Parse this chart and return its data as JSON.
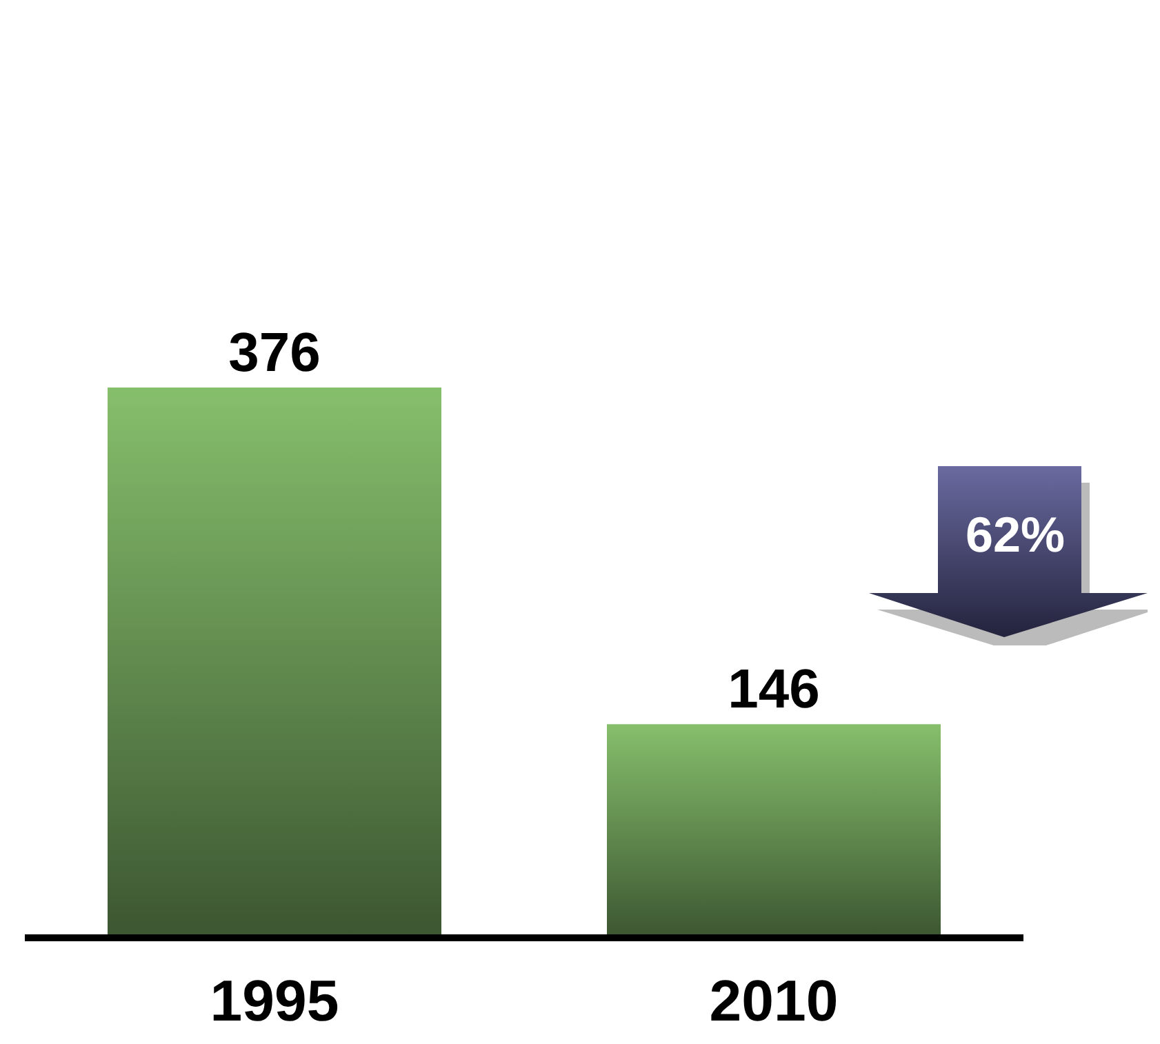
{
  "chart_data": {
    "type": "bar",
    "categories": [
      "1995",
      "2010"
    ],
    "values": [
      376,
      146
    ],
    "color": "#86bf6c",
    "data_labels": true,
    "grid": false,
    "legend": false,
    "annotations": [
      "62%"
    ]
  }
}
